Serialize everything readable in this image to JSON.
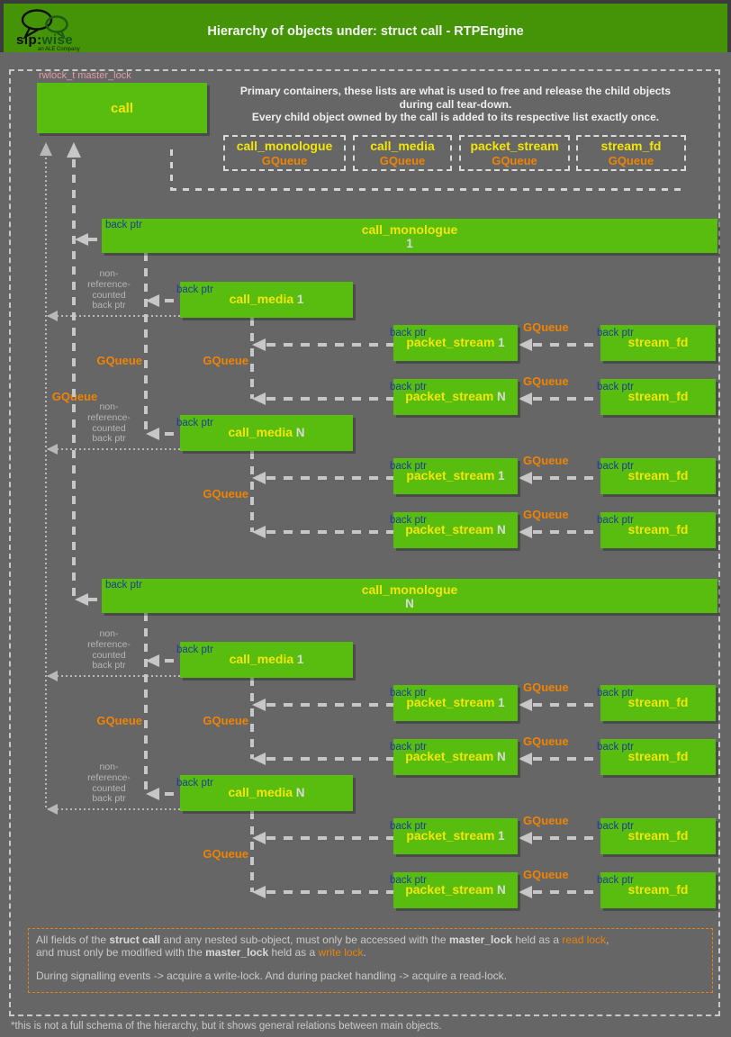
{
  "header": {
    "title": "Hierarchy of objects under: struct call - RTPEngine",
    "logo_sip": "sip:",
    "logo_wise": "wise",
    "logo_tagline": "an ALE Company"
  },
  "diagram": {
    "master_lock_label": "rwlock_t master_lock",
    "root_label": "call",
    "intro_lines": [
      "Primary containers, these lists are what is used to free and release the child objects",
      "during call tear-down.",
      "Every child object owned by the call is added to its respective list exactly once."
    ],
    "legend": {
      "items": [
        {
          "name": "call_monologue",
          "type": "GQueue"
        },
        {
          "name": "call_media",
          "type": "GQueue"
        },
        {
          "name": "packet_stream",
          "type": "GQueue"
        },
        {
          "name": "stream_fd",
          "type": "GQueue"
        }
      ]
    },
    "labels": {
      "back_ptr": "back ptr",
      "gqueue": "GQueue",
      "non_ref_lines": [
        "non-",
        "reference-",
        "counted",
        "back ptr"
      ]
    },
    "sections": [
      {
        "monologue_name": "call_monologue",
        "monologue_index": "1",
        "media_groups": [
          {
            "media_name": "call_media",
            "media_index": "1",
            "streams": [
              {
                "ps_name": "packet_stream",
                "ps_index": "1",
                "fd_name": "stream_fd"
              },
              {
                "ps_name": "packet_stream",
                "ps_index": "N",
                "fd_name": "stream_fd"
              }
            ]
          },
          {
            "media_name": "call_media",
            "media_index": "N",
            "streams": [
              {
                "ps_name": "packet_stream",
                "ps_index": "1",
                "fd_name": "stream_fd"
              },
              {
                "ps_name": "packet_stream",
                "ps_index": "N",
                "fd_name": "stream_fd"
              }
            ]
          }
        ]
      },
      {
        "monologue_name": "call_monologue",
        "monologue_index": "N",
        "media_groups": [
          {
            "media_name": "call_media",
            "media_index": "1",
            "streams": [
              {
                "ps_name": "packet_stream",
                "ps_index": "1",
                "fd_name": "stream_fd"
              },
              {
                "ps_name": "packet_stream",
                "ps_index": "N",
                "fd_name": "stream_fd"
              }
            ]
          },
          {
            "media_name": "call_media",
            "media_index": "N",
            "streams": [
              {
                "ps_name": "packet_stream",
                "ps_index": "1",
                "fd_name": "stream_fd"
              },
              {
                "ps_name": "packet_stream",
                "ps_index": "N",
                "fd_name": "stream_fd"
              }
            ]
          }
        ]
      }
    ]
  },
  "note": {
    "lines": [
      [
        {
          "t": "All fields of the ",
          "c": ""
        },
        {
          "t": "struct call",
          "c": "b"
        },
        {
          "t": " and any nested sub-object, must only be accessed with the ",
          "c": ""
        },
        {
          "t": "master_lock",
          "c": "b"
        },
        {
          "t": " held as a ",
          "c": ""
        },
        {
          "t": "read lock",
          "c": "o"
        },
        {
          "t": ",",
          "c": ""
        }
      ],
      [
        {
          "t": "and must only be modified with the ",
          "c": ""
        },
        {
          "t": "master_lock",
          "c": "b"
        },
        {
          "t": " held as a ",
          "c": ""
        },
        {
          "t": "write lock",
          "c": "o"
        },
        {
          "t": ".",
          "c": ""
        }
      ]
    ],
    "last_line": "During signalling events -> acquire a write-lock. And during packet handling -> acquire a read-lock."
  },
  "caption": "*this is not a full schema of the hierarchy, but it shows general relations between main objects.",
  "colors": {
    "background": "#666666",
    "header_green": "#459407",
    "box_green": "#58bd0f",
    "title_yellow": "#f2e609",
    "gqueue_orange": "#ef8402",
    "back_ptr_navy": "#1c3b9c",
    "lock_pink": "#e49aa6",
    "line_gray": "#c7c7c7"
  }
}
